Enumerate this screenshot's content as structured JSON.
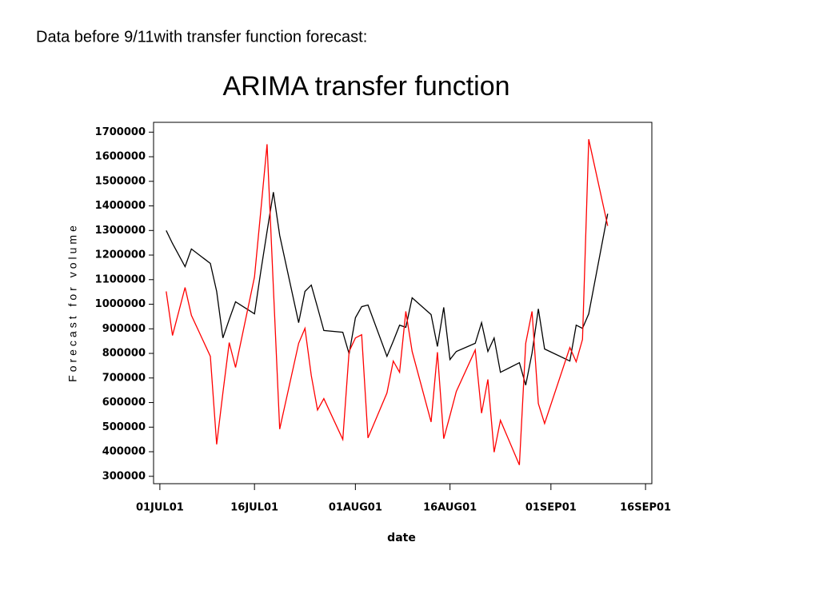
{
  "header": {
    "text": "Data before 9/11with transfer function forecast:"
  },
  "chart_data": {
    "type": "line",
    "title": "ARIMA transfer function",
    "x_label": "date",
    "y_label": "Forecast for volume",
    "x": [
      "2001-07-02",
      "2001-07-03",
      "2001-07-05",
      "2001-07-06",
      "2001-07-09",
      "2001-07-10",
      "2001-07-11",
      "2001-07-12",
      "2001-07-13",
      "2001-07-16",
      "2001-07-17",
      "2001-07-18",
      "2001-07-19",
      "2001-07-20",
      "2001-07-23",
      "2001-07-24",
      "2001-07-25",
      "2001-07-26",
      "2001-07-27",
      "2001-07-30",
      "2001-07-31",
      "2001-08-01",
      "2001-08-02",
      "2001-08-03",
      "2001-08-06",
      "2001-08-07",
      "2001-08-08",
      "2001-08-09",
      "2001-08-10",
      "2001-08-13",
      "2001-08-14",
      "2001-08-15",
      "2001-08-16",
      "2001-08-17",
      "2001-08-20",
      "2001-08-21",
      "2001-08-22",
      "2001-08-23",
      "2001-08-24",
      "2001-08-27",
      "2001-08-28",
      "2001-08-29",
      "2001-08-30",
      "2001-08-31",
      "2001-09-04",
      "2001-09-05",
      "2001-09-06",
      "2001-09-07",
      "2001-09-10"
    ],
    "series": [
      {
        "color": "#000000",
        "values": [
          1300000,
          1247000,
          1153000,
          1225000,
          1166000,
          1052000,
          863000,
          938000,
          1010000,
          961000,
          1134000,
          1296000,
          1456000,
          1280000,
          925000,
          1052000,
          1078000,
          987000,
          893000,
          886000,
          798000,
          945000,
          990000,
          997000,
          788000,
          850000,
          915000,
          906000,
          1026000,
          958000,
          828000,
          987000,
          775000,
          808000,
          841000,
          925000,
          808000,
          863000,
          723000,
          762000,
          671000,
          801000,
          981000,
          818000,
          769000,
          915000,
          902000,
          961000,
          1368000
        ]
      },
      {
        "color": "#ff0000",
        "values": [
          1052000,
          873000,
          1068000,
          955000,
          788000,
          430000,
          640000,
          844000,
          743000,
          1111000,
          1381000,
          1651000,
          1068000,
          492000,
          841000,
          902000,
          710000,
          570000,
          616000,
          450000,
          808000,
          863000,
          876000,
          456000,
          639000,
          769000,
          723000,
          971000,
          808000,
          521000,
          805000,
          453000,
          547000,
          645000,
          814000,
          557000,
          694000,
          398000,
          528000,
          346000,
          841000,
          971000,
          596000,
          515000,
          824000,
          766000,
          857000,
          1671000,
          1319000
        ]
      }
    ],
    "xlim": [
      "2001-06-30",
      "2001-09-17"
    ],
    "xticks": [
      {
        "value": "2001-07-01",
        "label": "01JUL01"
      },
      {
        "value": "2001-07-16",
        "label": "16JUL01"
      },
      {
        "value": "2001-08-01",
        "label": "01AUG01"
      },
      {
        "value": "2001-08-16",
        "label": "16AUG01"
      },
      {
        "value": "2001-09-01",
        "label": "01SEP01"
      },
      {
        "value": "2001-09-16",
        "label": "16SEP01"
      }
    ],
    "ylim": [
      270000,
      1740000
    ],
    "yticks": [
      300000,
      400000,
      500000,
      600000,
      700000,
      800000,
      900000,
      1000000,
      1100000,
      1200000,
      1300000,
      1400000,
      1500000,
      1600000,
      1700000
    ],
    "grid": false
  }
}
